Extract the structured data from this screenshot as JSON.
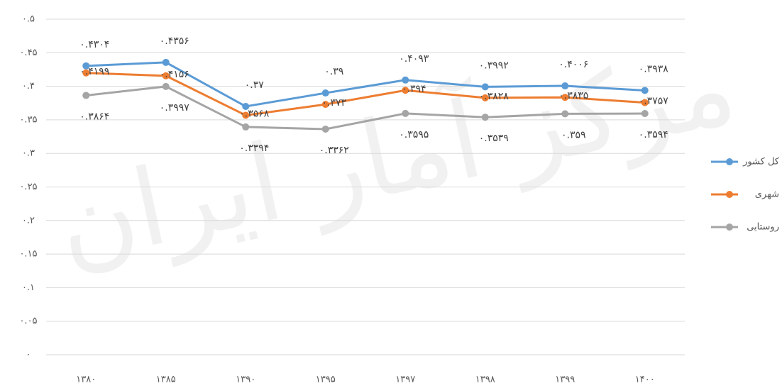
{
  "watermark": "مرکز آمار ایران",
  "chart_data": {
    "type": "line",
    "categories": [
      "۱۳۸۰",
      "۱۳۸۵",
      "۱۳۹۰",
      "۱۳۹۵",
      "۱۳۹۷",
      "۱۳۹۸",
      "۱۳۹۹",
      "۱۴۰۰"
    ],
    "series": [
      {
        "name": "کل کشور",
        "color": "#5b9bd5",
        "values": [
          0.4304,
          0.4356,
          0.37,
          0.39,
          0.4093,
          0.3992,
          0.4006,
          0.3938
        ],
        "value_labels": [
          "۰.۴۳۰۴",
          "۰.۴۳۵۶",
          "۰.۳۷",
          "۰.۳۹",
          "۰.۴۰۹۳",
          "۰.۳۹۹۲",
          "۰.۴۰۰۶",
          "۰.۳۹۳۸"
        ]
      },
      {
        "name": "شهری",
        "color": "#ed7d31",
        "values": [
          0.4199,
          0.4156,
          0.3568,
          0.373,
          0.394,
          0.3828,
          0.3835,
          0.3757
        ],
        "value_labels": [
          "۰.۴۱۹۹",
          "۰.۴۱۵۶",
          "۰.۳۵۶۸",
          "۰.۳۷۳",
          "۰.۳۹۴",
          "۰.۳۸۲۸",
          "۰.۳۸۳۵",
          "۰.۳۷۵۷"
        ]
      },
      {
        "name": "روستایی",
        "color": "#a5a5a5",
        "values": [
          0.3864,
          0.3997,
          0.3394,
          0.3362,
          0.3595,
          0.3539,
          0.359,
          0.3594
        ],
        "value_labels": [
          "۰.۳۸۶۴",
          "۰.۳۹۹۷",
          "۰.۳۳۹۴",
          "۰.۳۳۶۲",
          "۰.۳۵۹۵",
          "۰.۳۵۳۹",
          "۰.۳۵۹",
          "۰.۳۵۹۴"
        ]
      }
    ],
    "ylim": [
      0,
      0.5
    ],
    "yticks": [
      {
        "value": 0,
        "label": "۰"
      },
      {
        "value": 0.05,
        "label": "۰.۰۵"
      },
      {
        "value": 0.1,
        "label": "۰.۱"
      },
      {
        "value": 0.15,
        "label": "۰.۱۵"
      },
      {
        "value": 0.2,
        "label": "۰.۲"
      },
      {
        "value": 0.25,
        "label": "۰.۲۵"
      },
      {
        "value": 0.3,
        "label": "۰.۳"
      },
      {
        "value": 0.35,
        "label": "۰.۳۵"
      },
      {
        "value": 0.4,
        "label": "۰.۴"
      },
      {
        "value": 0.45,
        "label": "۰.۴۵"
      },
      {
        "value": 0.5,
        "label": "۰.۵"
      }
    ],
    "grid": true,
    "legend": "right"
  }
}
